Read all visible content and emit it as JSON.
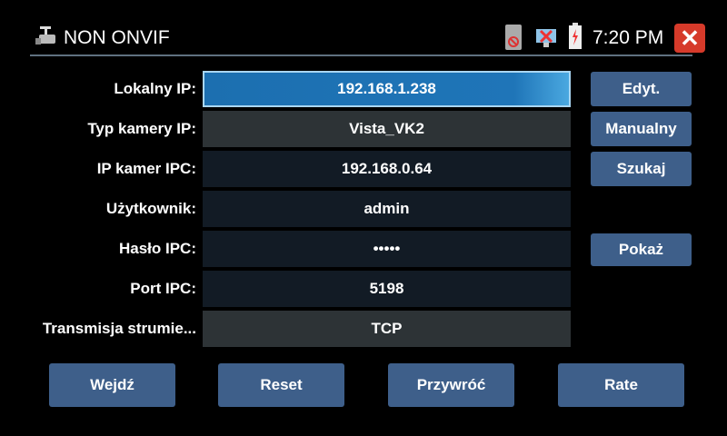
{
  "header": {
    "title": "NON ONVIF",
    "time": "7:20 PM",
    "icons": [
      "camera-icon",
      "sd-card-missing-icon",
      "network-disconnected-icon",
      "battery-charging-icon",
      "close-icon"
    ]
  },
  "form": [
    {
      "label": "Lokalny IP:",
      "value": "192.168.1.238"
    },
    {
      "label": "Typ kamery IP:",
      "value": "Vista_VK2"
    },
    {
      "label": "IP kamer IPC:",
      "value": "192.168.0.64"
    },
    {
      "label": "Użytkownik:",
      "value": "admin"
    },
    {
      "label": "Hasło IPC:",
      "value": "•••••"
    },
    {
      "label": "Port IPC:",
      "value": "5198"
    },
    {
      "label": "Transmisja strumie...",
      "value": "TCP"
    }
  ],
  "side_buttons": {
    "edit": "Edyt.",
    "manual": "Manualny",
    "search": "Szukaj",
    "show": "Pokaż"
  },
  "bottom_buttons": [
    "Wejdź",
    "Reset",
    "Przywróć",
    "Rate"
  ]
}
